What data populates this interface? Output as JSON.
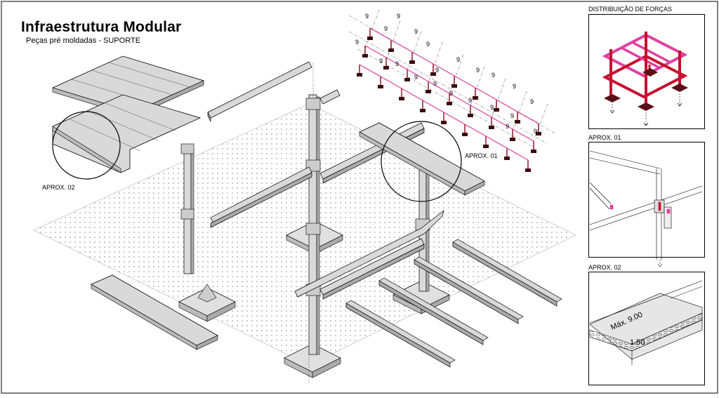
{
  "header": {
    "title": "Infraestrutura Modular",
    "subtitle": "Peças pré moldadas - SUPORTE"
  },
  "callouts": {
    "aprox01": "APROX. 01",
    "aprox02": "APROX. 02"
  },
  "grid_plan": {
    "module_label": "9"
  },
  "panels": {
    "forces": {
      "title": "DISTRIBUIÇÃO DE FORÇAS"
    },
    "detail01": {
      "title": "APROX. 01"
    },
    "detail02": {
      "title": "APROX. 02",
      "max_label": "Máx. 9.00",
      "thickness_label": "1.50"
    }
  },
  "colors": {
    "line": "#000000",
    "concrete": "#d9d9d9",
    "frame_red": "#c8102e",
    "frame_pink": "#e040a0",
    "footing": "#5a1018",
    "dots": "#555555"
  }
}
